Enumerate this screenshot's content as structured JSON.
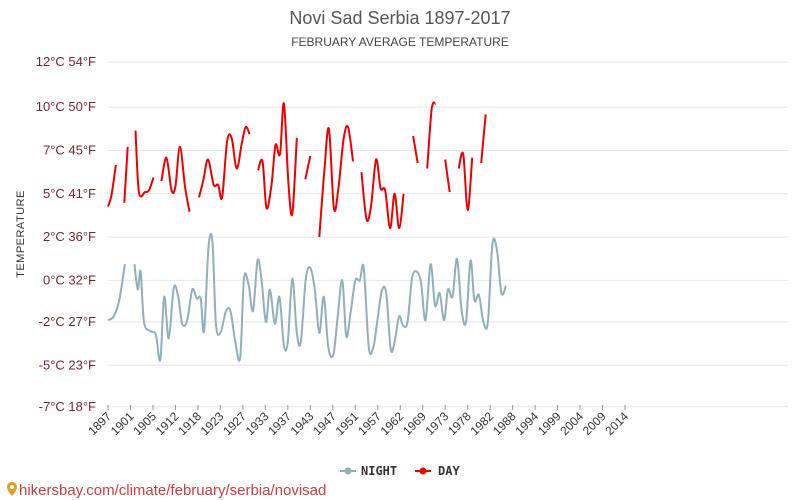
{
  "chart_data": {
    "type": "line",
    "title": "Novi Sad Serbia 1897-2017",
    "subtitle": "FEBRUARY AVERAGE TEMPERATURE",
    "ylabel": "TEMPERATURE",
    "ylim": [
      -7,
      12
    ],
    "y_ticks": [
      {
        "value": 12,
        "label": "12°C 54°F"
      },
      {
        "value": 9.5,
        "label": "10°C 50°F"
      },
      {
        "value": 7.1,
        "label": "7°C 45°F"
      },
      {
        "value": 4.7,
        "label": "5°C 41°F"
      },
      {
        "value": 2.3,
        "label": "2°C 36°F"
      },
      {
        "value": -0.1,
        "label": "0°C 32°F"
      },
      {
        "value": -2.4,
        "label": "-2°C 27°F"
      },
      {
        "value": -4.8,
        "label": "-5°C 23°F"
      },
      {
        "value": -7.1,
        "label": "-7°C 18°F"
      }
    ],
    "x_tick_labels": [
      "1897",
      "1901",
      "1905",
      "1912",
      "1918",
      "1923",
      "1927",
      "1933",
      "1937",
      "1943",
      "1947",
      "1951",
      "1957",
      "1962",
      "1969",
      "1973",
      "1978",
      "1982",
      "1988",
      "1994",
      "1999",
      "2004",
      "2009",
      "2014"
    ],
    "xlim": [
      0,
      121
    ],
    "x_tick_positions": [
      0,
      4,
      8,
      12,
      16,
      20,
      24,
      28,
      32,
      36,
      40,
      44,
      48,
      52,
      56,
      60,
      64,
      68,
      72,
      76,
      80,
      84,
      88,
      92
    ],
    "series": [
      {
        "name": "NIGHT",
        "color": "#90afbb",
        "values": [
          -2.3,
          -2.1,
          -1.2,
          0.8,
          null,
          0.8,
          -0.6,
          0.4,
          -2.4,
          -2.9,
          -3.1,
          -4.5,
          -1.0,
          -3.3,
          -0.5,
          -1.0,
          -2.5,
          -2.3,
          -0.6,
          -1.1,
          -1.1,
          -2.9,
          1.8,
          2.0,
          -2.5,
          -3.0,
          -1.8,
          -1.8,
          -3.4,
          -4.4,
          0.0,
          -0.3,
          -1.8,
          1.0,
          0.0,
          -2.4,
          -0.6,
          -2.5,
          -1.0,
          -3.7,
          -3.5,
          0.0,
          -3.0,
          -3.5,
          0.0,
          0.6,
          -0.6,
          -3.0,
          -1.0,
          -3.8,
          -4.2,
          -2.0,
          -0.1,
          -3.2,
          -1.8,
          -0.1,
          -0.1,
          0.6,
          -3.8,
          -3.8,
          -2.4,
          -0.7,
          -0.8,
          -3.9,
          -3.5,
          -2.1,
          -2.6,
          -2.4,
          0.0,
          0.4,
          -0.2,
          -2.3,
          0.8,
          -1.5,
          -0.8,
          -2.3,
          -0.6,
          -1.0,
          1.1,
          -1.7,
          -2.4,
          1.0,
          -1.2,
          -0.9,
          -2.4,
          -2.4,
          1.9,
          1.6,
          -0.8,
          -0.4
        ],
        "x": [
          0,
          1,
          2,
          3,
          4,
          4.7,
          5.3,
          5.8,
          6.4,
          7.5,
          8.5,
          9.3,
          10.0,
          10.8,
          11.7,
          12.5,
          13.2,
          14.1,
          15.0,
          15.8,
          16.5,
          17.1,
          17.9,
          18.6,
          19.2,
          20.0,
          21.0,
          21.8,
          22.6,
          23.5,
          24.2,
          25.0,
          25.8,
          26.6,
          27.3,
          28.1,
          28.8,
          29.7,
          30.5,
          31.3,
          32.0,
          32.8,
          33.6,
          34.3,
          35.2,
          36.0,
          36.8,
          37.6,
          38.4,
          39.2,
          40.1,
          40.9,
          41.7,
          42.4,
          43.2,
          44.0,
          44.8,
          45.5,
          46.4,
          47.2,
          47.9,
          48.7,
          49.5,
          50.3,
          51.0,
          51.8,
          52.5,
          53.3,
          54.1,
          54.9,
          55.7,
          56.5,
          57.4,
          58.2,
          59.0,
          59.8,
          60.5,
          61.3,
          62.1,
          62.9,
          63.7,
          64.5,
          65.2,
          66.0,
          66.8,
          67.6,
          68.4,
          69.2,
          70.0,
          70.8
        ]
      },
      {
        "name": "DAY",
        "color": "#ee0000",
        "values": [
          4.0,
          4.6,
          6.3,
          null,
          4.2,
          7.3,
          null,
          8.2,
          4.8,
          4.8,
          4.9,
          5.6,
          null,
          5.4,
          6.7,
          4.9,
          5.1,
          7.3,
          5.1,
          3.7,
          null,
          4.5,
          5.5,
          6.6,
          5.2,
          5.2,
          4.5,
          7.6,
          7.8,
          6.1,
          7.5,
          8.4,
          8.0,
          null,
          6.0,
          6.5,
          3.9,
          5.2,
          7.4,
          6.9,
          9.7,
          5.3,
          3.6,
          7.8,
          null,
          5.5,
          6.8,
          null,
          2.3,
          6.0,
          8.3,
          3.9,
          5.0,
          7.7,
          8.4,
          6.5,
          null,
          5.9,
          3.3,
          4.0,
          6.6,
          5.0,
          4.9,
          2.8,
          4.7,
          2.8,
          4.7,
          null,
          7.9,
          6.4,
          null,
          6.1,
          9.4,
          9.7,
          null,
          6.6,
          4.8,
          null,
          6.1,
          6.9,
          3.8,
          6.7,
          null,
          6.4,
          9.1
        ],
        "x": [
          0,
          0.6,
          1.4,
          2.2,
          2.9,
          3.5,
          4.2,
          4.9,
          5.5,
          6.6,
          7.3,
          8.1,
          8.8,
          9.5,
          10.4,
          11.3,
          12.0,
          12.8,
          13.7,
          14.5,
          15.2,
          16.2,
          17.0,
          17.8,
          18.8,
          19.6,
          20.3,
          21.2,
          22.0,
          22.9,
          23.8,
          24.5,
          25.2,
          25.9,
          26.7,
          27.5,
          28.2,
          29.1,
          29.8,
          30.6,
          31.3,
          32.1,
          32.8,
          33.6,
          34.3,
          35.1,
          36.0,
          36.8,
          37.6,
          38.5,
          39.3,
          40.2,
          41.0,
          41.9,
          42.7,
          43.6,
          44.3,
          45.1,
          46.0,
          46.8,
          47.7,
          48.5,
          49.3,
          50.2,
          51.0,
          51.8,
          52.6,
          53.4,
          54.3,
          55.1,
          55.9,
          56.8,
          57.6,
          58.3,
          59.2,
          60.0,
          60.8,
          61.5,
          62.4,
          63.2,
          64.0,
          64.8,
          65.6,
          66.4,
          67.2
        ]
      }
    ],
    "legend": [
      {
        "name": "NIGHT",
        "color": "#90afbb"
      },
      {
        "name": "DAY",
        "color": "#ee0000"
      }
    ],
    "legend_position": "bottom-center",
    "grid": true
  },
  "footer": {
    "source": "hikersbay.com/climate/february/serbia/novisad"
  }
}
